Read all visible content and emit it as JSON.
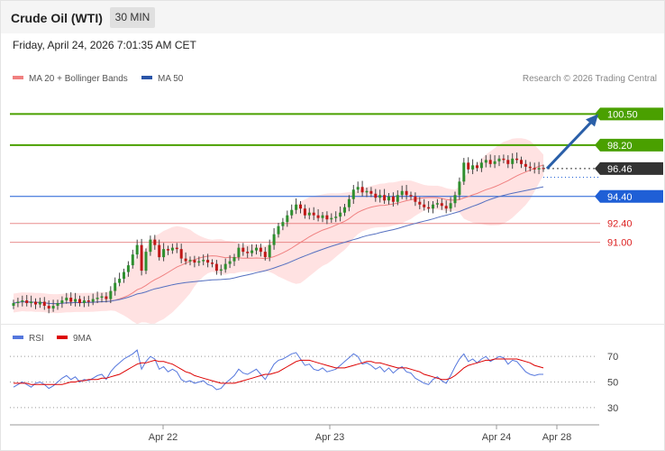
{
  "header": {
    "title": "Crude Oil (WTI)",
    "timeframe": "30 MIN",
    "datetime": "Friday, April 24, 2026 7:01:35 AM CET"
  },
  "legend": {
    "ma20": "MA 20 + Bollinger Bands",
    "ma50": "MA 50",
    "credit": "Research © 2026 Trading Central",
    "rsi": "RSI",
    "rsi_ma": "9MA"
  },
  "colors": {
    "resistance": "#4aa000",
    "support": "#e06060",
    "pivot": "#1f5fd6",
    "price_tag": "#333333",
    "bollinger_fill": "#ffd8d8",
    "ma20": "#f08080",
    "ma50": "#5570c0",
    "rsi": "#5577dd",
    "rsi_ma": "#dd0000",
    "arrow": "#2a5fa8",
    "candle_up": "#2f8f2f",
    "candle_down": "#c01818"
  },
  "chart_data": [
    {
      "type": "candlestick",
      "title": "Crude Oil (WTI)",
      "x_ticks": [
        "Apr 22",
        "Apr 23",
        "Apr 24",
        "Apr 28"
      ],
      "levels": [
        {
          "value": 100.5,
          "label": "100.50",
          "kind": "resistance"
        },
        {
          "value": 98.2,
          "label": "98.20",
          "kind": "resistance"
        },
        {
          "value": 96.46,
          "label": "96.46",
          "kind": "last_price"
        },
        {
          "value": 94.4,
          "label": "94.40",
          "kind": "pivot"
        },
        {
          "value": 92.4,
          "label": "92.40",
          "kind": "support"
        },
        {
          "value": 91.0,
          "label": "91.00",
          "kind": "support"
        }
      ],
      "last_price": 96.46,
      "projection": {
        "from": 96.46,
        "to": 100.5,
        "direction": "up"
      },
      "ylim": [
        85.5,
        103.2
      ],
      "series": [
        {
          "name": "Price",
          "close": [
            86.5,
            86.6,
            86.7,
            86.5,
            86.6,
            86.4,
            86.6,
            86.3,
            86.1,
            86.3,
            86.5,
            86.7,
            86.9,
            86.6,
            86.8,
            86.5,
            86.7,
            86.6,
            86.8,
            86.9,
            87.0,
            86.8,
            87.4,
            88.0,
            88.3,
            88.8,
            89.3,
            90.1,
            90.8,
            88.9,
            90.3,
            91.2,
            90.8,
            89.9,
            90.5,
            90.4,
            90.6,
            90.5,
            89.8,
            89.6,
            89.7,
            89.5,
            89.6,
            89.7,
            89.5,
            89.4,
            88.9,
            89.0,
            89.4,
            89.6,
            89.9,
            90.6,
            90.3,
            90.2,
            90.4,
            90.6,
            90.3,
            89.9,
            90.8,
            91.6,
            92.2,
            92.5,
            93.0,
            93.4,
            93.8,
            93.5,
            93.0,
            93.2,
            93.0,
            92.8,
            93.0,
            92.7,
            92.8,
            92.9,
            93.2,
            93.6,
            94.2,
            94.9,
            95.1,
            94.7,
            94.8,
            94.6,
            94.3,
            94.5,
            94.1,
            94.4,
            94.0,
            94.5,
            94.8,
            94.5,
            94.4,
            94.0,
            93.8,
            93.6,
            93.5,
            93.8,
            93.9,
            93.7,
            93.5,
            93.9,
            94.5,
            95.5,
            96.9,
            96.4,
            96.7,
            96.5,
            96.9,
            97.1,
            96.8,
            97.0,
            97.2,
            97.1,
            96.8,
            97.2,
            97.1,
            96.8,
            96.6,
            96.5,
            96.4,
            96.5,
            96.46
          ]
        },
        {
          "name": "MA 20"
        },
        {
          "name": "MA 50"
        }
      ]
    },
    {
      "type": "line",
      "title": "RSI",
      "ylim": [
        20,
        80
      ],
      "y_ticks": [
        70,
        50,
        30
      ],
      "series": [
        {
          "name": "RSI",
          "values": [
            46,
            48,
            50,
            48,
            46,
            49,
            50,
            48,
            45,
            47,
            50,
            53,
            55,
            52,
            54,
            50,
            52,
            51,
            53,
            55,
            56,
            52,
            58,
            62,
            65,
            68,
            70,
            72,
            75,
            60,
            66,
            70,
            68,
            60,
            62,
            58,
            60,
            58,
            52,
            50,
            51,
            49,
            50,
            51,
            48,
            47,
            44,
            45,
            49,
            52,
            55,
            60,
            57,
            56,
            58,
            60,
            56,
            52,
            58,
            64,
            67,
            68,
            70,
            72,
            73,
            68,
            63,
            64,
            60,
            59,
            61,
            58,
            59,
            60,
            63,
            66,
            69,
            72,
            70,
            64,
            65,
            63,
            60,
            62,
            58,
            61,
            57,
            60,
            62,
            58,
            57,
            53,
            51,
            49,
            48,
            52,
            54,
            51,
            49,
            55,
            62,
            68,
            72,
            66,
            68,
            65,
            68,
            70,
            66,
            68,
            70,
            69,
            64,
            67,
            66,
            62,
            58,
            56,
            55,
            56,
            56
          ]
        },
        {
          "name": "9MA",
          "values": [
            49,
            49,
            49,
            49,
            48,
            48,
            48,
            48,
            48,
            48,
            48,
            48,
            49,
            50,
            50,
            51,
            51,
            52,
            52,
            52,
            53,
            53,
            54,
            55,
            56,
            58,
            60,
            62,
            64,
            65,
            65,
            66,
            67,
            66,
            66,
            65,
            64,
            62,
            60,
            58,
            57,
            55,
            54,
            53,
            52,
            51,
            50,
            49,
            49,
            49,
            49,
            50,
            51,
            52,
            53,
            54,
            55,
            56,
            56,
            57,
            58,
            60,
            62,
            64,
            66,
            67,
            67,
            67,
            66,
            65,
            64,
            63,
            62,
            61,
            61,
            61,
            62,
            63,
            64,
            65,
            66,
            66,
            65,
            65,
            64,
            63,
            62,
            61,
            61,
            61,
            60,
            59,
            58,
            56,
            55,
            54,
            53,
            52,
            52,
            53,
            55,
            58,
            61,
            63,
            64,
            65,
            66,
            67,
            67,
            68,
            68,
            68,
            68,
            68,
            68,
            67,
            66,
            65,
            63,
            62,
            61
          ]
        }
      ]
    }
  ]
}
